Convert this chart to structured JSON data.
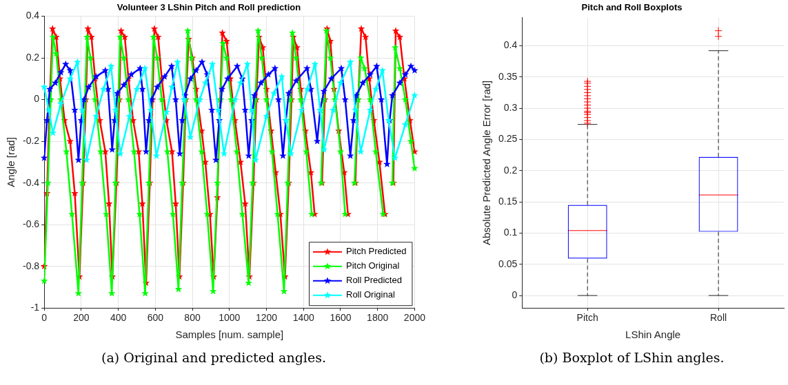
{
  "chart_data": [
    {
      "type": "line",
      "title": "Volunteer 3 LShin Pitch and Roll prediction",
      "xlabel": "Samples [num. sample]",
      "ylabel": "Angle [rad]",
      "xlim": [
        0,
        2000
      ],
      "xticks": [
        0,
        200,
        400,
        600,
        800,
        1000,
        1200,
        1400,
        1600,
        1800,
        2000
      ],
      "ylim": [
        -1,
        0.4
      ],
      "yticks": [
        -1,
        -0.8,
        -0.6,
        -0.4,
        -0.2,
        0,
        0.2,
        0.4
      ],
      "grid": true,
      "legend": "bottom right",
      "marker": "star",
      "line_style": "solid",
      "annotations": [
        "(a) Original and predicted angles."
      ],
      "series": [
        {
          "name": "Pitch Predicted",
          "color": "#ff0000",
          "x": [
            0,
            15,
            30,
            45,
            65,
            85,
            110,
            140,
            165,
            190,
            210,
            225,
            236,
            255,
            275,
            300,
            330,
            350,
            368,
            390,
            405,
            415,
            435,
            455,
            480,
            510,
            530,
            550,
            570,
            585,
            595,
            615,
            635,
            660,
            690,
            710,
            730,
            750,
            765,
            780,
            800,
            820,
            850,
            870,
            895,
            915,
            935,
            950,
            962,
            985,
            1005,
            1030,
            1060,
            1085,
            1108,
            1130,
            1145,
            1160,
            1180,
            1200,
            1225,
            1250,
            1275,
            1300,
            1320,
            1335,
            1345,
            1365,
            1385,
            1410,
            1440,
            1460,
            1478,
            1500,
            1515,
            1527,
            1545,
            1565,
            1590,
            1620,
            1640,
            1658,
            1680,
            1695,
            1712,
            1735,
            1755,
            1780,
            1810,
            1840,
            1868,
            1885,
            1898,
            1920,
            1945,
            1975,
            2000
          ],
          "values": [
            -0.8,
            -0.45,
            0.0,
            0.34,
            0.3,
            0.1,
            -0.1,
            -0.2,
            -0.45,
            -0.85,
            -0.4,
            0.0,
            0.34,
            0.3,
            0.1,
            -0.1,
            -0.25,
            -0.5,
            -0.85,
            -0.4,
            0.0,
            0.33,
            0.3,
            0.1,
            -0.1,
            -0.25,
            -0.5,
            -0.88,
            -0.4,
            0.0,
            0.34,
            0.3,
            0.1,
            -0.1,
            -0.25,
            -0.5,
            -0.85,
            -0.4,
            0.0,
            0.29,
            0.2,
            0.05,
            -0.15,
            -0.3,
            -0.55,
            -0.85,
            -0.47,
            0.0,
            0.32,
            0.28,
            0.1,
            -0.1,
            -0.3,
            -0.5,
            -0.85,
            -0.4,
            0.0,
            0.3,
            0.25,
            0.05,
            -0.15,
            -0.35,
            -0.55,
            -0.85,
            -0.4,
            0.0,
            0.3,
            0.25,
            0.05,
            -0.15,
            -0.35,
            -0.55,
            null,
            -0.4,
            0.0,
            0.34,
            0.28,
            0.05,
            -0.15,
            -0.35,
            -0.55,
            null,
            -0.4,
            0.0,
            0.34,
            0.3,
            0.1,
            -0.1,
            -0.3,
            -0.55,
            null,
            -0.4,
            0.33,
            0.3,
            0.1,
            -0.1,
            -0.25
          ]
        },
        {
          "name": "Pitch Original",
          "color": "#00ff00",
          "x": [
            0,
            20,
            35,
            47,
            65,
            90,
            120,
            150,
            185,
            205,
            220,
            231,
            250,
            275,
            305,
            335,
            365,
            385,
            400,
            410,
            430,
            455,
            485,
            515,
            545,
            565,
            580,
            590,
            610,
            635,
            665,
            695,
            725,
            745,
            762,
            775,
            795,
            820,
            850,
            880,
            912,
            935,
            952,
            965,
            985,
            1010,
            1040,
            1070,
            1104,
            1125,
            1140,
            1155,
            1175,
            1200,
            1230,
            1260,
            1295,
            1315,
            1330,
            1340,
            1360,
            1385,
            1415,
            1445,
            1474,
            1495,
            1510,
            1524,
            1545,
            1570,
            1600,
            1625,
            1653,
            1675,
            1695,
            1709,
            1730,
            1760,
            1790,
            1830,
            1863,
            1880,
            1895,
            1920,
            1950,
            1980,
            2000
          ],
          "values": [
            -0.87,
            -0.4,
            0.0,
            0.3,
            0.22,
            0.0,
            -0.25,
            -0.55,
            -0.93,
            -0.4,
            0.0,
            0.3,
            0.2,
            0.0,
            -0.25,
            -0.55,
            -0.93,
            -0.4,
            0.0,
            0.3,
            0.2,
            0.0,
            -0.25,
            -0.55,
            -0.93,
            -0.4,
            0.0,
            0.3,
            0.2,
            0.0,
            -0.25,
            -0.55,
            -0.91,
            -0.4,
            0.0,
            0.33,
            0.2,
            0.0,
            -0.25,
            -0.55,
            -0.92,
            -0.4,
            0.0,
            0.27,
            0.2,
            0.0,
            -0.25,
            -0.55,
            -0.88,
            -0.4,
            0.0,
            0.33,
            0.2,
            0.0,
            -0.25,
            -0.55,
            -0.92,
            -0.4,
            0.0,
            0.32,
            0.2,
            0.0,
            -0.25,
            -0.55,
            null,
            -0.4,
            0.0,
            0.33,
            0.2,
            0.0,
            -0.25,
            -0.55,
            null,
            -0.4,
            0.0,
            0.2,
            0.15,
            0.0,
            -0.25,
            -0.55,
            null,
            -0.4,
            0.25,
            0.15,
            0.0,
            -0.2,
            -0.33
          ]
        },
        {
          "name": "Roll Predicted",
          "color": "#0000ff",
          "x": [
            0,
            15,
            30,
            60,
            90,
            116,
            140,
            165,
            185,
            200,
            215,
            240,
            280,
            330,
            345,
            367,
            380,
            395,
            430,
            470,
            518,
            530,
            550,
            565,
            580,
            610,
            650,
            688,
            710,
            732,
            745,
            760,
            790,
            820,
            852,
            880,
            905,
            927,
            945,
            960,
            990,
            1042,
            1070,
            1085,
            1104,
            1120,
            1135,
            1170,
            1210,
            1246,
            1265,
            1289,
            1305,
            1320,
            1360,
            1419,
            1440,
            1474,
            1490,
            1510,
            1550,
            1604,
            1625,
            1653,
            1670,
            1685,
            1720,
            1760,
            1795,
            1820,
            1851,
            1865,
            1880,
            1920,
            1950,
            1980,
            2000
          ],
          "values": [
            -0.28,
            -0.1,
            0.05,
            0.08,
            0.13,
            0.17,
            0.14,
            -0.05,
            -0.29,
            -0.1,
            0.0,
            0.06,
            0.11,
            0.14,
            0.05,
            -0.24,
            -0.1,
            0.03,
            0.07,
            0.12,
            0.15,
            0.05,
            -0.25,
            -0.1,
            0.0,
            0.06,
            0.11,
            0.16,
            0.0,
            -0.26,
            -0.1,
            0.02,
            0.1,
            0.14,
            0.18,
            0.12,
            -0.05,
            -0.29,
            -0.1,
            0.05,
            0.1,
            0.16,
            0.1,
            -0.05,
            -0.27,
            -0.1,
            0.02,
            0.08,
            0.12,
            0.15,
            0.0,
            -0.27,
            -0.1,
            0.03,
            0.09,
            0.15,
            0.05,
            -0.2,
            -0.05,
            0.04,
            0.1,
            0.15,
            0.0,
            -0.27,
            -0.1,
            0.02,
            0.08,
            0.12,
            0.16,
            0.0,
            -0.31,
            -0.1,
            0.02,
            0.08,
            0.12,
            0.16,
            0.14
          ]
        },
        {
          "name": "Roll Original",
          "color": "#00ffff",
          "x": [
            0,
            25,
            47,
            90,
            140,
            179,
            205,
            229,
            280,
            320,
            361,
            385,
            411,
            460,
            500,
            544,
            575,
            606,
            660,
            690,
            720,
            755,
            789,
            840,
            870,
            908,
            940,
            971,
            1030,
            1060,
            1097,
            1120,
            1141,
            1200,
            1240,
            1283,
            1305,
            1332,
            1390,
            1420,
            1462,
            1490,
            1511,
            1560,
            1600,
            1653,
            1680,
            1709,
            1760,
            1790,
            1826,
            1860,
            1894,
            1950,
            2000
          ],
          "values": [
            0.06,
            -0.05,
            -0.16,
            -0.02,
            0.1,
            0.18,
            -0.05,
            -0.29,
            -0.08,
            0.05,
            0.16,
            -0.05,
            -0.26,
            -0.08,
            0.05,
            0.15,
            -0.05,
            -0.27,
            -0.06,
            0.06,
            0.18,
            0.0,
            -0.18,
            0.0,
            0.08,
            0.17,
            -0.05,
            -0.26,
            0.0,
            0.08,
            0.17,
            -0.05,
            -0.29,
            -0.08,
            0.03,
            0.11,
            -0.1,
            -0.26,
            -0.05,
            0.05,
            0.17,
            -0.05,
            -0.24,
            -0.05,
            0.08,
            0.18,
            -0.05,
            -0.25,
            -0.05,
            0.05,
            0.14,
            -0.1,
            -0.28,
            -0.12,
            0.02
          ]
        }
      ]
    },
    {
      "type": "box",
      "title": "Pitch and Roll Boxplots",
      "xlabel": "LShin Angle",
      "ylabel": "Absolute Predicted Angle Error [rad]",
      "categories": [
        "Pitch",
        "Roll"
      ],
      "ylim": [
        -0.02,
        0.445
      ],
      "yticks": [
        0,
        0.05,
        0.1,
        0.15,
        0.2,
        0.25,
        0.3,
        0.35,
        0.4
      ],
      "grid": true,
      "annotations": [
        "(b) Boxplot of LShin angles."
      ],
      "series": [
        {
          "color": "#0000ff",
          "boxes": [
            {
              "low": 0,
              "q1": 0.059,
              "median": 0.104,
              "q3": 0.145,
              "high": 0.274,
              "outliers": [
                0.276,
                0.28,
                0.285,
                0.29,
                0.293,
                0.295,
                0.3,
                0.305,
                0.31,
                0.315,
                0.32,
                0.325,
                0.33,
                0.335,
                0.34,
                0.343
              ]
            },
            {
              "low": 0,
              "q1": 0.102,
              "median": 0.161,
              "q3": 0.222,
              "high": 0.392,
              "outliers": [
                0.415,
                0.424
              ]
            }
          ]
        }
      ]
    }
  ]
}
